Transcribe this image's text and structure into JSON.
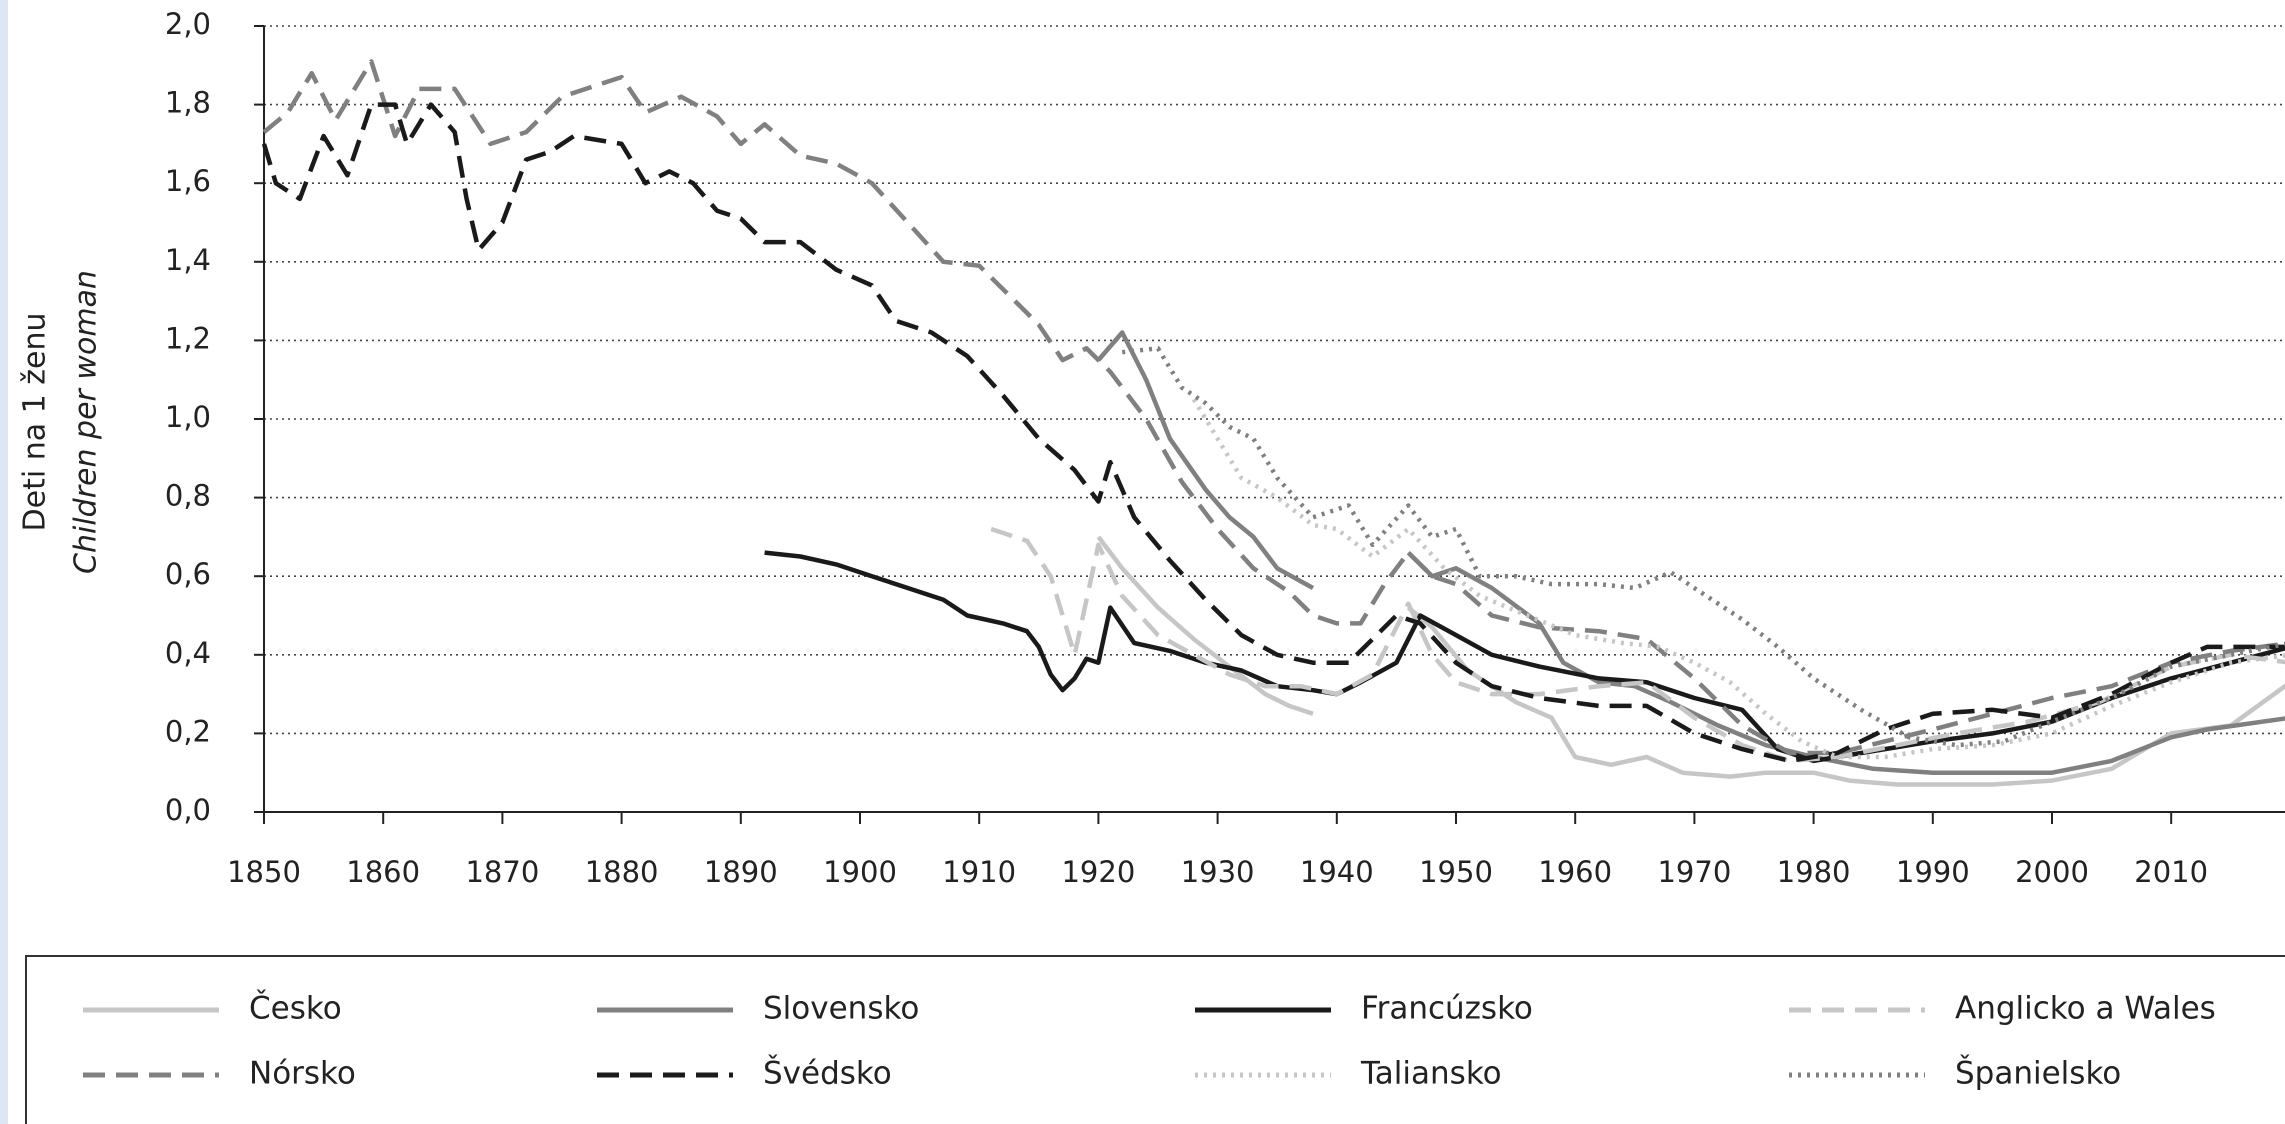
{
  "chart_data": {
    "type": "line",
    "y_label": "Deti na 1 ženu",
    "y_label_en": "Children per woman",
    "xlim": [
      1850,
      2020
    ],
    "xticks": [
      1850,
      1860,
      1870,
      1880,
      1890,
      1900,
      1910,
      1920,
      1930,
      1940,
      1950,
      1960,
      1970,
      1980,
      1990,
      2000,
      2010
    ],
    "ylim": [
      0,
      2
    ],
    "yticks": [
      {
        "value": 0,
        "label": "0,0"
      },
      {
        "value": 0.2,
        "label": "0,2"
      },
      {
        "value": 0.4,
        "label": "0,4"
      },
      {
        "value": 0.6,
        "label": "0,6"
      },
      {
        "value": 0.8,
        "label": "0,8"
      },
      {
        "value": 1,
        "label": "1,0"
      },
      {
        "value": 1.2,
        "label": "1,2"
      },
      {
        "value": 1.4,
        "label": "1,4"
      },
      {
        "value": 1.6,
        "label": "1,6"
      },
      {
        "value": 1.8,
        "label": "1,8"
      },
      {
        "value": 2,
        "label": "2,0"
      }
    ],
    "grid": true,
    "legend": "bottom",
    "series": [
      {
        "name": "Česko",
        "color": "#c6c6c6",
        "dash": "solid",
        "x": [
          1920,
          1922,
          1925,
          1928,
          1931,
          1934,
          1936,
          1938,
          1942,
          1946,
          1948,
          1951,
          1955,
          1958,
          1960,
          1963,
          1966,
          1969,
          1973,
          1976,
          1980,
          1983,
          1987,
          1995,
          2000,
          2005,
          2010,
          2015,
          2020
        ],
        "values": [
          0.7,
          0.62,
          0.52,
          0.44,
          0.37,
          0.3,
          0.27,
          0.25,
          null,
          0.52,
          0.47,
          0.36,
          0.28,
          0.24,
          0.14,
          0.12,
          0.14,
          0.1,
          0.09,
          0.1,
          0.1,
          0.08,
          0.07,
          0.07,
          0.08,
          0.11,
          0.2,
          0.22,
          0.33
        ]
      },
      {
        "name": "Slovensko",
        "color": "#808080",
        "dash": "solid",
        "x": [
          1920,
          1922,
          1924,
          1926,
          1929,
          1931,
          1933,
          1935,
          1938,
          1942,
          1946,
          1948,
          1950,
          1953,
          1957,
          1959,
          1962,
          1965,
          1968,
          1972,
          1976,
          1980,
          1985,
          1990,
          1995,
          2000,
          2005,
          2010,
          2013,
          2020
        ],
        "values": [
          1.15,
          1.22,
          1.1,
          0.95,
          0.82,
          0.75,
          0.7,
          0.62,
          0.57,
          null,
          0.66,
          0.6,
          0.62,
          0.57,
          0.48,
          0.38,
          0.33,
          0.32,
          0.28,
          0.22,
          0.17,
          0.14,
          0.11,
          0.1,
          0.1,
          0.1,
          0.13,
          0.19,
          0.21,
          0.24
        ]
      },
      {
        "name": "Francúzsko",
        "color": "#1a1a1a",
        "dash": "solid",
        "x": [
          1892,
          1895,
          1898,
          1901,
          1904,
          1907,
          1909,
          1912,
          1914,
          1915,
          1916,
          1917,
          1918,
          1919,
          1920,
          1921,
          1923,
          1926,
          1929,
          1932,
          1935,
          1938,
          1940,
          1942,
          1945,
          1947,
          1950,
          1953,
          1957,
          1962,
          1966,
          1970,
          1974,
          1977,
          1980,
          1984,
          1990,
          1995,
          2000,
          2005,
          2010,
          2015,
          2020
        ],
        "values": [
          0.66,
          0.65,
          0.63,
          0.6,
          0.57,
          0.54,
          0.5,
          0.48,
          0.46,
          0.42,
          0.35,
          0.31,
          0.34,
          0.39,
          0.38,
          0.52,
          0.43,
          0.41,
          0.38,
          0.36,
          0.32,
          0.31,
          0.3,
          0.33,
          0.38,
          0.5,
          0.45,
          0.4,
          0.37,
          0.34,
          0.33,
          0.29,
          0.26,
          0.16,
          0.13,
          0.15,
          0.18,
          0.2,
          0.23,
          0.29,
          0.34,
          0.38,
          0.42
        ]
      },
      {
        "name": "Anglicko a Wales",
        "color": "#c6c6c6",
        "dash": "dashed",
        "x": [
          1911,
          1914,
          1916,
          1918,
          1920,
          1922,
          1925,
          1928,
          1931,
          1934,
          1937,
          1940,
          1943,
          1946,
          1948,
          1950,
          1953,
          1957,
          1962,
          1966,
          1970,
          1974,
          1978,
          1982,
          1987,
          1992,
          1998,
          2004,
          2010,
          2015,
          2020
        ],
        "values": [
          0.72,
          0.69,
          0.6,
          0.4,
          0.68,
          0.55,
          0.45,
          0.4,
          0.35,
          0.32,
          0.32,
          0.3,
          0.35,
          0.53,
          0.4,
          0.33,
          0.3,
          0.3,
          0.32,
          0.33,
          0.24,
          0.17,
          0.13,
          0.14,
          0.17,
          0.2,
          0.23,
          0.28,
          0.37,
          0.4,
          0.38
        ]
      },
      {
        "name": "Nórsko",
        "color": "#808080",
        "dash": "dashed",
        "x": [
          1850,
          1852,
          1854,
          1856,
          1859,
          1861,
          1863,
          1866,
          1869,
          1872,
          1875,
          1878,
          1880,
          1882,
          1885,
          1888,
          1890,
          1892,
          1895,
          1898,
          1901,
          1904,
          1907,
          1910,
          1913,
          1915,
          1917,
          1919,
          1921,
          1924,
          1927,
          1930,
          1933,
          1936,
          1938,
          1940,
          1942,
          1944,
          1946,
          1948,
          1950,
          1953,
          1957,
          1962,
          1966,
          1970,
          1974,
          1978,
          1982,
          1986,
          1990,
          1995,
          2000,
          2005,
          2010,
          2015,
          2020
        ],
        "values": [
          1.73,
          1.78,
          1.88,
          1.76,
          1.91,
          1.72,
          1.84,
          1.84,
          1.7,
          1.73,
          1.82,
          1.85,
          1.87,
          1.78,
          1.82,
          1.77,
          1.7,
          1.75,
          1.67,
          1.65,
          1.6,
          1.5,
          1.4,
          1.39,
          1.3,
          1.24,
          1.15,
          1.18,
          1.12,
          1.0,
          0.84,
          0.72,
          0.62,
          0.56,
          0.5,
          0.48,
          0.48,
          0.58,
          0.66,
          0.6,
          0.58,
          0.5,
          0.47,
          0.46,
          0.44,
          0.34,
          0.22,
          0.15,
          0.15,
          0.18,
          0.21,
          0.25,
          0.29,
          0.32,
          0.38,
          0.41,
          0.43
        ]
      },
      {
        "name": "Švédsko",
        "color": "#1a1a1a",
        "dash": "dashed",
        "x": [
          1850,
          1851,
          1853,
          1855,
          1857,
          1859,
          1861,
          1862,
          1864,
          1866,
          1867,
          1868,
          1870,
          1872,
          1874,
          1876,
          1878,
          1880,
          1882,
          1884,
          1886,
          1888,
          1890,
          1892,
          1895,
          1898,
          1901,
          1903,
          1906,
          1909,
          1912,
          1915,
          1918,
          1920,
          1921,
          1923,
          1926,
          1929,
          1932,
          1935,
          1938,
          1941,
          1943,
          1945,
          1947,
          1950,
          1953,
          1957,
          1962,
          1966,
          1970,
          1974,
          1978,
          1982,
          1986,
          1990,
          1995,
          2000,
          2005,
          2010,
          2013,
          2020
        ],
        "values": [
          1.7,
          1.6,
          1.56,
          1.72,
          1.62,
          1.8,
          1.8,
          1.7,
          1.8,
          1.73,
          1.56,
          1.43,
          1.5,
          1.66,
          1.68,
          1.72,
          1.71,
          1.7,
          1.6,
          1.63,
          1.6,
          1.53,
          1.51,
          1.45,
          1.45,
          1.38,
          1.34,
          1.25,
          1.22,
          1.16,
          1.06,
          0.95,
          0.87,
          0.79,
          0.89,
          0.75,
          0.64,
          0.54,
          0.45,
          0.4,
          0.38,
          0.38,
          0.44,
          0.5,
          0.48,
          0.38,
          0.32,
          0.29,
          0.27,
          0.27,
          0.2,
          0.16,
          0.13,
          0.15,
          0.21,
          0.25,
          0.26,
          0.24,
          0.3,
          0.38,
          0.42,
          0.42
        ]
      },
      {
        "name": "Taliansko",
        "color": "#c6c6c6",
        "dash": "dotted",
        "x": [
          1928,
          1930,
          1932,
          1935,
          1938,
          1940,
          1943,
          1946,
          1949,
          1952,
          1956,
          1960,
          1964,
          1967,
          1970,
          1973,
          1976,
          1979,
          1982,
          1986,
          1990,
          1995,
          2000,
          2005,
          2010,
          2015,
          2020
        ],
        "values": [
          1.05,
          0.95,
          0.85,
          0.8,
          0.73,
          0.72,
          0.65,
          0.72,
          0.62,
          0.55,
          0.5,
          0.45,
          0.43,
          0.42,
          0.38,
          0.33,
          0.25,
          0.18,
          0.14,
          0.14,
          0.16,
          0.17,
          0.2,
          0.27,
          0.33,
          0.38,
          0.4
        ]
      },
      {
        "name": "Španielsko",
        "color": "#808080",
        "dash": "dotted",
        "x": [
          1922,
          1925,
          1927,
          1929,
          1931,
          1933,
          1935,
          1938,
          1941,
          1943,
          1946,
          1948,
          1950,
          1952,
          1955,
          1958,
          1962,
          1965,
          1968,
          1971,
          1974,
          1977,
          1980,
          1984,
          1988,
          1992,
          1996,
          2000,
          2005,
          2010,
          2015,
          2020
        ],
        "values": [
          1.17,
          1.18,
          1.08,
          1.04,
          0.98,
          0.95,
          0.85,
          0.75,
          0.78,
          0.68,
          0.78,
          0.7,
          0.72,
          0.6,
          0.6,
          0.58,
          0.58,
          0.57,
          0.61,
          0.55,
          0.49,
          0.42,
          0.34,
          0.26,
          0.19,
          0.17,
          0.18,
          0.23,
          0.29,
          0.37,
          0.4,
          0.43
        ]
      }
    ]
  }
}
